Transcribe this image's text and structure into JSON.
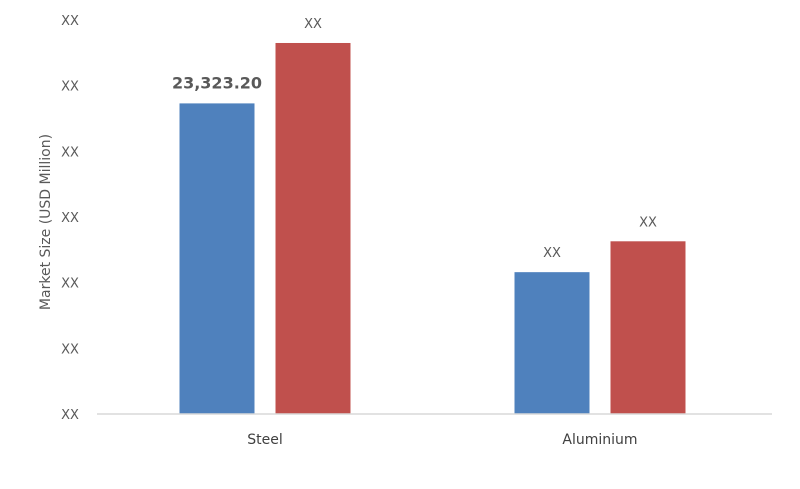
{
  "chart_data": {
    "type": "bar",
    "title": "",
    "xlabel": "",
    "ylabel": "Market Size (USD Million)",
    "categories": [
      "Steel",
      "Aluminium"
    ],
    "y_tick_labels": [
      "XX",
      "XX",
      "XX",
      "XX",
      "XX",
      "XX",
      "XX"
    ],
    "ylim": [
      0,
      6
    ],
    "grid": false,
    "legend": "none",
    "series": [
      {
        "color": "#4F81BD",
        "values": [
          4.73,
          2.16
        ],
        "data_labels": [
          "23,323.20",
          "XX"
        ],
        "data_label_colors": [
          "#A5373A",
          "#595959"
        ]
      },
      {
        "color": "#C0504D",
        "values": [
          5.65,
          2.63
        ],
        "data_labels": [
          "XX",
          "XX"
        ],
        "data_label_colors": [
          "#595959",
          "#595959"
        ]
      }
    ]
  }
}
